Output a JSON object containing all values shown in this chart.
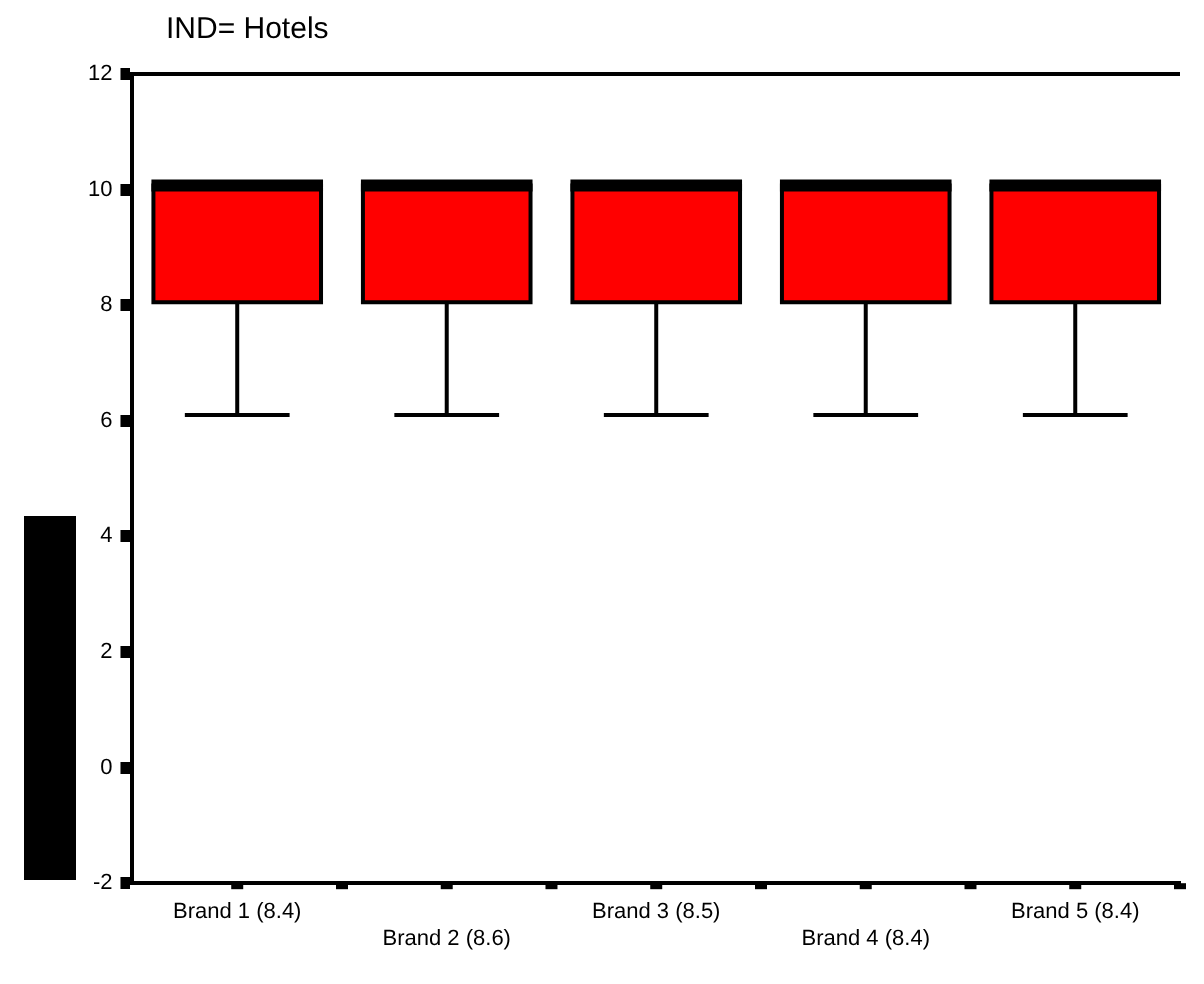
{
  "chart_data": {
    "type": "box",
    "title": "IND= Hotels",
    "categories": [
      "Brand 1 (8.4)",
      "Brand 2 (8.6)",
      "Brand 3 (8.5)",
      "Brand 4 (8.4)",
      "Brand 5 (8.4)"
    ],
    "color": "#ff0000",
    "boxes": [
      {
        "low": 6.1,
        "q1": 8.05,
        "median": 10.07,
        "q3": 10.07,
        "high": 10.07
      },
      {
        "low": 6.1,
        "q1": 8.05,
        "median": 10.07,
        "q3": 10.07,
        "high": 10.07
      },
      {
        "low": 6.1,
        "q1": 8.05,
        "median": 10.07,
        "q3": 10.07,
        "high": 10.07
      },
      {
        "low": 6.1,
        "q1": 8.05,
        "median": 10.07,
        "q3": 10.07,
        "high": 10.07
      },
      {
        "low": 6.1,
        "q1": 8.05,
        "median": 10.07,
        "q3": 10.07,
        "high": 10.07
      }
    ],
    "ylim": [
      -2,
      12
    ],
    "yticks": [
      -2,
      0,
      2,
      4,
      6,
      8,
      10,
      12
    ],
    "grid": false,
    "legend": false
  }
}
